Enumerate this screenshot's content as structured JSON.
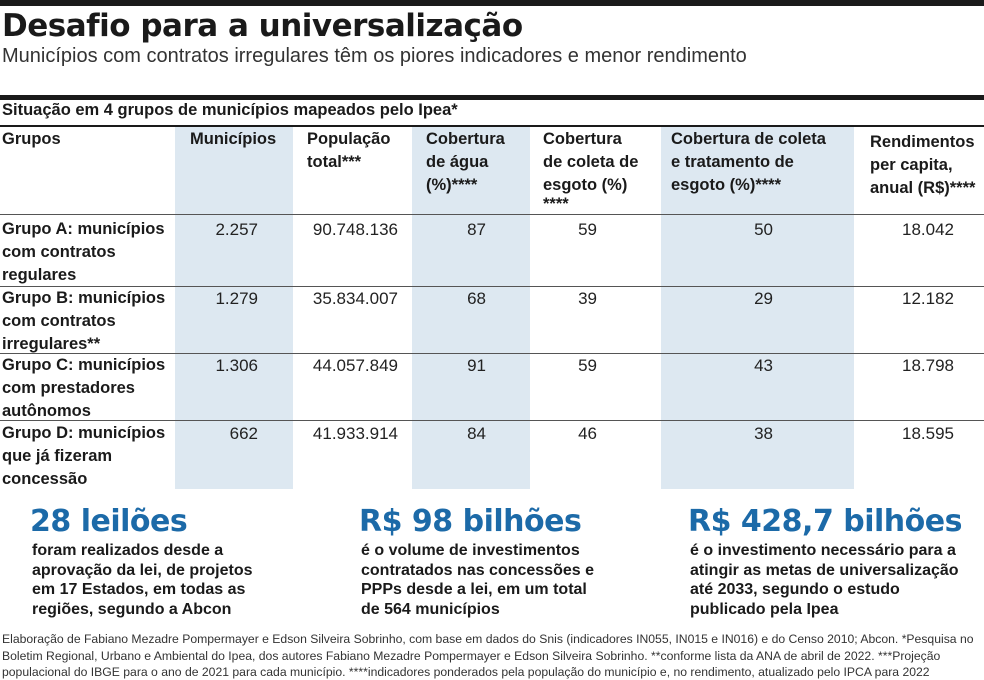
{
  "title": "Desafio para a universalização",
  "subtitle": "Municípios com contratos irregulares têm os piores indicadores e menor rendimento",
  "table": {
    "caption": "Situação em 4 grupos de municípios mapeados pelo Ipea*",
    "headers": [
      [
        "Grupos"
      ],
      [
        "Municípios"
      ],
      [
        "População",
        "total***"
      ],
      [
        "Cobertura",
        "de água",
        "(%)****"
      ],
      [
        "Cobertura",
        "de coleta de",
        "esgoto (%)",
        "****"
      ],
      [
        "Cobertura de coleta",
        "e tratamento de",
        "esgoto (%)****"
      ],
      [
        "Rendimentos",
        "per capita,",
        "anual (R$)****"
      ]
    ],
    "rows": [
      {
        "group": [
          "Grupo A: municípios",
          "com contratos",
          "regulares"
        ],
        "values": [
          "2.257",
          "90.748.136",
          "87",
          "59",
          "50",
          "18.042"
        ]
      },
      {
        "group": [
          "Grupo B: municípios",
          "com contratos",
          "irregulares**"
        ],
        "values": [
          "1.279",
          "35.834.007",
          "68",
          "39",
          "29",
          "12.182"
        ]
      },
      {
        "group": [
          "Grupo C: municípios",
          "com prestadores",
          "autônomos"
        ],
        "values": [
          "1.306",
          "44.057.849",
          "91",
          "59",
          "43",
          "18.798"
        ]
      },
      {
        "group": [
          "Grupo D: municípios",
          "que já fizeram",
          "concessão"
        ],
        "values": [
          "662",
          "41.933.914",
          "84",
          "46",
          "38",
          "18.595"
        ]
      }
    ]
  },
  "stats": [
    {
      "big": "28 leilões",
      "lines": [
        "foram realizados desde a",
        "aprovação da lei, de projetos",
        "em 17 Estados, em todas as",
        "regiões, segundo a Abcon"
      ]
    },
    {
      "big": "R$ 98 bilhões",
      "lines": [
        "é o volume de investimentos",
        "contratados nas concessões e",
        "PPPs desde a lei, em um total",
        "de 564 municípios"
      ]
    },
    {
      "big": "R$ 428,7 bilhões",
      "lines": [
        "é o investimento necessário para a",
        "atingir as metas de universalização",
        "até 2033, segundo o estudo",
        "publicado pela Ipea"
      ]
    }
  ],
  "footnote": [
    "Elaboração de Fabiano Mezadre Pompermayer e Edson Silveira Sobrinho, com base em dados do Snis (indicadores IN055, IN015 e IN016) e do Censo 2010; Abcon. *Pesquisa no",
    "Boletim Regional, Urbano e Ambiental do Ipea, dos autores Fabiano Mezadre Pompermayer e Edson Silveira Sobrinho. **conforme lista da ANA de abril de 2022. ***Projeção",
    "populacional do IBGE para o ano de 2021 para cada município. ****indicadores ponderados pela população do município e, no rendimento, atualizado pelo IPCA para 2022"
  ],
  "colors": {
    "accent": "#1c6aa8",
    "column_shade": "#dde8f1"
  }
}
